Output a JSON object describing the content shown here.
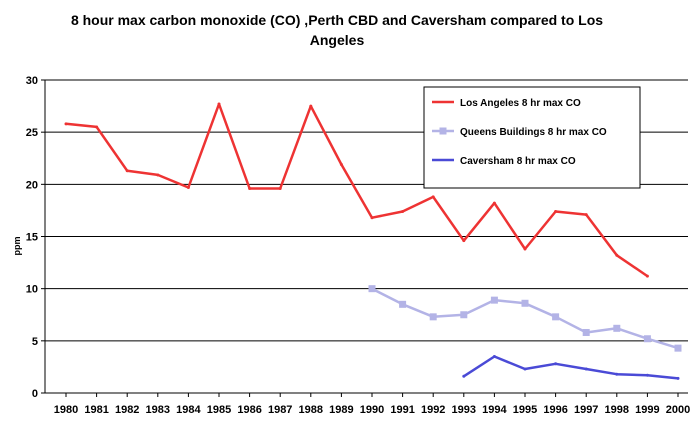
{
  "chart_data": {
    "type": "line",
    "title_line1": "8 hour max carbon monoxide (CO) ,Perth CBD and Caversham  compared to Los",
    "title_line2": "Angeles",
    "xlabel": "",
    "ylabel": "ppm",
    "ylim": [
      0,
      30
    ],
    "yticks": [
      0,
      5,
      10,
      15,
      20,
      25,
      30
    ],
    "grid": "horizontal",
    "legend_position": "top-right",
    "x": [
      "1980",
      "1981",
      "1982",
      "1983",
      "1984",
      "1985",
      "1986",
      "1987",
      "1988",
      "1989",
      "1990",
      "1991",
      "1992",
      "1993",
      "1994",
      "1995",
      "1996",
      "1997",
      "1998",
      "1999",
      "2000"
    ],
    "series": [
      {
        "name": "Los Angeles 8 hr max CO",
        "color": "#ee3333",
        "marker": "none",
        "values": [
          25.8,
          25.5,
          21.3,
          20.9,
          19.7,
          27.7,
          19.6,
          19.6,
          27.5,
          21.9,
          16.8,
          17.4,
          18.8,
          14.6,
          18.2,
          13.8,
          17.4,
          17.1,
          13.2,
          11.2,
          null
        ]
      },
      {
        "name": "Queens Buildings 8 hr max CO",
        "color": "#b3b3e6",
        "marker": "square",
        "values": [
          null,
          null,
          null,
          null,
          null,
          null,
          null,
          null,
          null,
          null,
          10.0,
          8.5,
          7.3,
          7.5,
          8.9,
          8.6,
          7.3,
          5.8,
          6.2,
          5.2,
          4.3
        ]
      },
      {
        "name": "Caversham 8 hr max CO",
        "color": "#4a4ad6",
        "marker": "none",
        "values": [
          null,
          null,
          null,
          null,
          null,
          null,
          null,
          null,
          null,
          null,
          null,
          null,
          null,
          1.6,
          3.5,
          2.3,
          2.8,
          2.3,
          1.8,
          1.7,
          1.4
        ]
      }
    ]
  }
}
